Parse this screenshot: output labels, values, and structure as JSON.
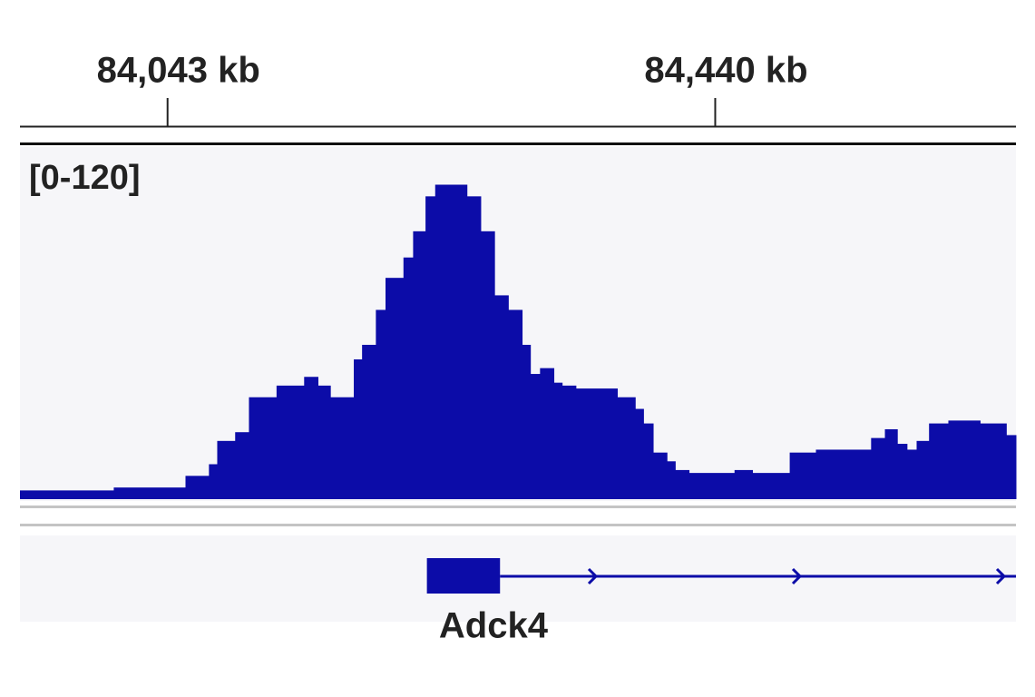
{
  "chart_data": {
    "type": "coverage",
    "range_label": "[0-120]",
    "color": "#0c0ca8",
    "xlim": [
      83936,
      84658
    ],
    "xticks": [
      {
        "value": 84043,
        "label": "84,043 kb"
      },
      {
        "value": 84440,
        "label": "84,440 kb"
      }
    ],
    "ylim": [
      0,
      120
    ],
    "x": [
      83936,
      84004,
      84056,
      84073,
      84079,
      84092,
      84102,
      84122,
      84142,
      84152,
      84161,
      84178,
      84184,
      84194,
      84201,
      84214,
      84221,
      84230,
      84237,
      84260,
      84270,
      84280,
      84290,
      84300,
      84306,
      84313,
      84323,
      84329,
      84339,
      84369,
      84382,
      84388,
      84395,
      84405,
      84411,
      84421,
      84454,
      84467,
      84494,
      84513,
      84553,
      84563,
      84572,
      84579,
      84586,
      84595,
      84609,
      84632,
      84651
    ],
    "values": [
      3,
      4,
      8,
      12,
      20,
      23,
      35,
      39,
      42,
      39,
      35,
      48,
      53,
      65,
      76,
      83,
      92,
      104,
      108,
      104,
      92,
      70,
      65,
      53,
      43,
      45,
      40,
      39,
      38,
      35,
      31,
      26,
      16,
      13,
      10,
      9,
      10,
      9,
      16,
      17,
      21,
      24,
      19,
      17,
      20,
      26,
      27,
      26,
      22
    ],
    "gene": {
      "name": "Adck4",
      "exon_start": 84231,
      "exon_end": 84284
    }
  }
}
